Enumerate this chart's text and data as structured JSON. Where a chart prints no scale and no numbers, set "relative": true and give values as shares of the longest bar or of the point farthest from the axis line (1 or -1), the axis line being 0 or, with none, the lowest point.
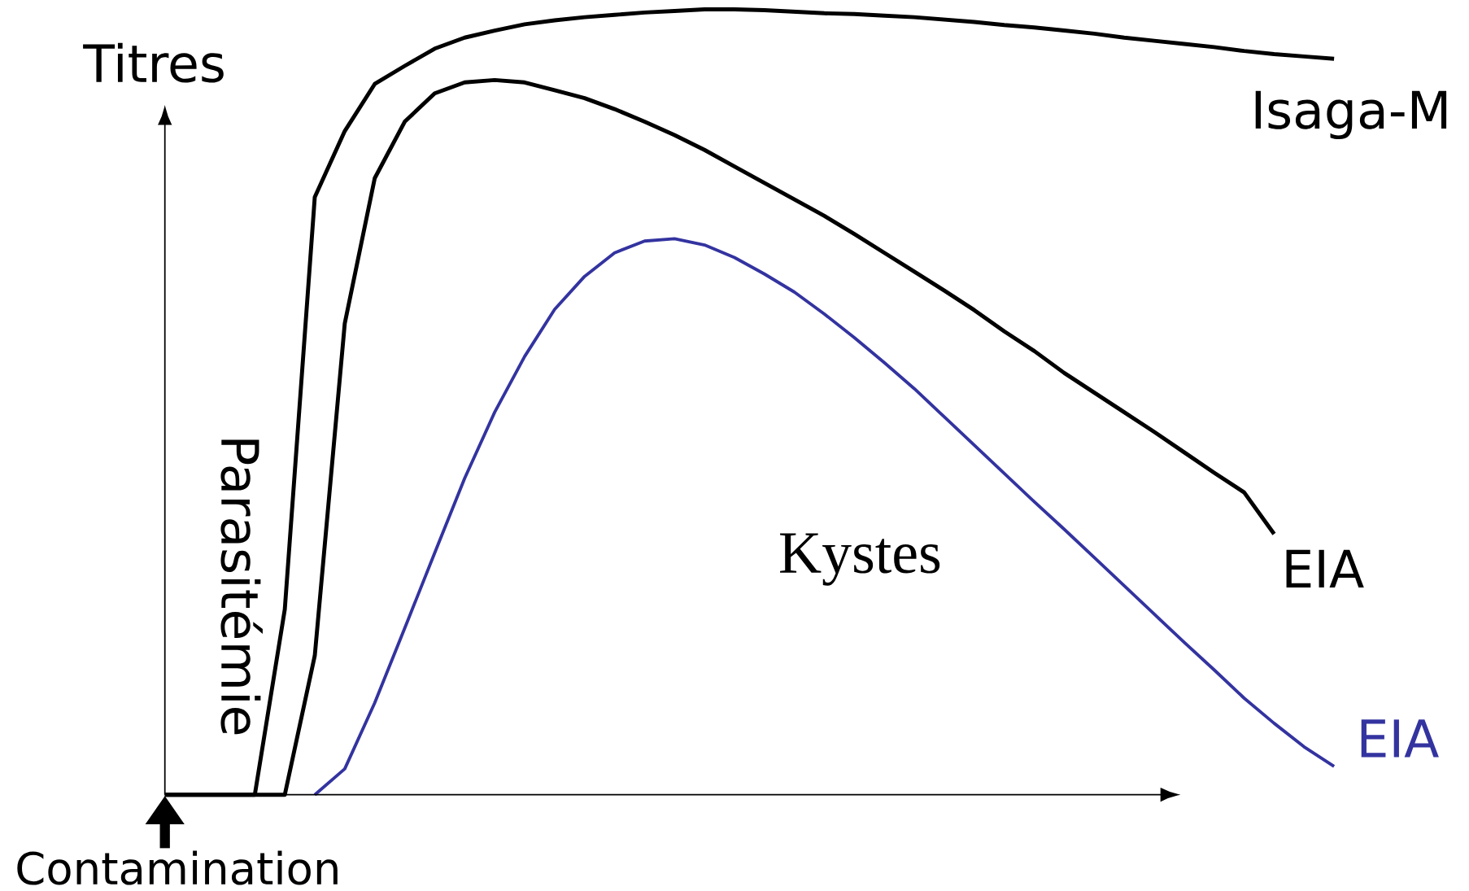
{
  "chart_data": {
    "type": "line",
    "relative": true,
    "ylabel": "Titres",
    "categories": [
      null,
      null,
      null,
      null,
      null,
      null,
      null,
      null,
      null,
      null,
      null,
      null,
      null,
      null,
      null,
      null,
      null,
      null,
      null,
      null,
      null,
      null,
      null,
      null,
      null,
      null,
      null,
      null,
      null,
      null,
      null,
      null,
      null,
      null,
      null,
      null,
      null,
      null,
      null,
      null,
      null
    ],
    "series": [
      {
        "name": "Isaga-M",
        "color": "#000000",
        "values": [
          0,
          0,
          0,
          0,
          0.236,
          0.761,
          0.845,
          0.905,
          0.928,
          0.95,
          0.964,
          0.973,
          0.981,
          0.986,
          0.99,
          0.993,
          0.996,
          0.998,
          1,
          1,
          0.999,
          0.997,
          0.995,
          0.994,
          0.992,
          0.99,
          0.987,
          0.984,
          0.98,
          0.977,
          0.973,
          0.969,
          0.964,
          0.96,
          0.956,
          0.952,
          0.947,
          0.943,
          0.94,
          0.937,
          null
        ]
      },
      {
        "name": "EIA",
        "color": "#000000",
        "values": [
          0,
          0,
          0,
          0,
          0,
          0.177,
          0.6,
          0.785,
          0.857,
          0.893,
          0.907,
          0.91,
          0.907,
          0.897,
          0.887,
          0.873,
          0.857,
          0.84,
          0.821,
          0.8,
          0.779,
          0.758,
          0.737,
          0.714,
          0.69,
          0.666,
          0.642,
          0.617,
          0.59,
          0.565,
          0.537,
          0.512,
          0.487,
          0.462,
          0.436,
          0.41,
          0.385,
          0.332,
          null,
          null,
          null
        ]
      },
      {
        "name": "EIA",
        "color": "#3333a0",
        "values": [
          null,
          null,
          null,
          null,
          null,
          0,
          0.033,
          0.117,
          0.212,
          0.308,
          0.403,
          0.487,
          0.558,
          0.618,
          0.66,
          0.69,
          0.705,
          0.708,
          0.7,
          0.684,
          0.663,
          0.64,
          0.612,
          0.582,
          0.55,
          0.517,
          0.481,
          0.445,
          0.409,
          0.373,
          0.338,
          0.302,
          0.266,
          0.23,
          0.194,
          0.159,
          0.123,
          0.091,
          0.061,
          0.036,
          null
        ]
      }
    ],
    "annotations": [
      "Parasitémie",
      "Kystes",
      "Contamination"
    ]
  }
}
